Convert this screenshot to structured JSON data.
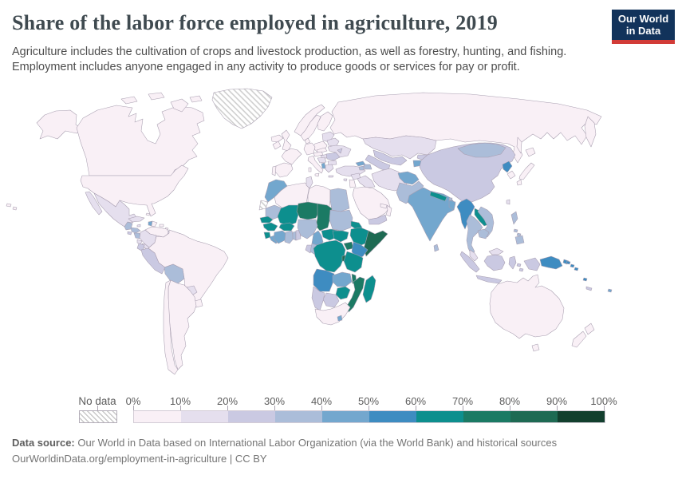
{
  "header": {
    "title": "Share of the labor force employed in agriculture, 2019",
    "subtitle_line1": "Agriculture includes the cultivation of crops and livestock production, as well as forestry, hunting, and fishing.",
    "subtitle_line2": "Employment includes anyone engaged in any activity to produce goods or services for pay or profit.",
    "logo": {
      "line1": "Our World",
      "line2": "in Data",
      "bg_color": "#12335b",
      "accent_color": "#d23b37"
    }
  },
  "legend": {
    "no_data_label": "No data",
    "tick_labels": [
      "0%",
      "10%",
      "20%",
      "30%",
      "40%",
      "50%",
      "60%",
      "70%",
      "80%",
      "90%",
      "100%"
    ]
  },
  "footer": {
    "source_label": "Data source:",
    "source_text": " Our World in Data based on International Labor Organization (via the World Bank) and historical sources",
    "link_line": "OurWorldinData.org/employment-in-agriculture | CC BY"
  },
  "chart_data": {
    "type": "choropleth",
    "title": "Share of the labor force employed in agriculture, 2019",
    "unit": "% of labor force",
    "bin_edges": [
      0,
      10,
      20,
      30,
      40,
      50,
      60,
      70,
      80,
      90,
      100
    ],
    "palette": [
      "#f9f0f6",
      "#e5dfee",
      "#cac9e2",
      "#abbdd9",
      "#73a7ce",
      "#3e8cc1",
      "#0d8f8e",
      "#1b7a64",
      "#1e6a53",
      "#123f2e"
    ],
    "no_data_fill": "hatched",
    "border_color": "#a79daf",
    "country_bins": {
      "United States": 0,
      "Canada": 0,
      "Greenland": "no-data",
      "Mexico": 1,
      "Guatemala": 3,
      "Honduras": 3,
      "Nicaragua": 3,
      "El Salvador": 2,
      "Costa Rica": 1,
      "Panama": 1,
      "Cuba": 1,
      "Jamaica": 1,
      "Haiti": 4,
      "Dominican Republic": 0,
      "Puerto Rico": 0,
      "Bahamas": 0,
      "Trinidad and Tobago": 1,
      "Lesser Antilles": 0,
      "Venezuela": 0,
      "Colombia": 1,
      "Guyana": 1,
      "Suriname": 2,
      "French Guiana": 0,
      "Ecuador": 2,
      "Peru": 2,
      "Bolivia": 3,
      "Brazil": 0,
      "Paraguay": 1,
      "Uruguay": 0,
      "Argentina": 0,
      "Chile": 0,
      "Iceland": 0,
      "Ireland": 0,
      "United Kingdom": 0,
      "Norway": 0,
      "Sweden": 0,
      "Finland": 0,
      "Denmark": 0,
      "Baltic states": 1,
      "Belarus": 1,
      "Poland": 0,
      "Germany": 0,
      "France": 0,
      "Spain": 0,
      "Portugal": 0,
      "Austria": 0,
      "Czechia": 0,
      "Hungary": 1,
      "Italy": 0,
      "Serbia": 1,
      "Romania": 2,
      "Bulgaria": 1,
      "Albania": 4,
      "Greece": 1,
      "Moldova": 2,
      "Ukraine": 1,
      "Turkey": 1,
      "Cyprus": 1,
      "Georgia": 4,
      "Armenia": 3,
      "Azerbaijan": 3,
      "Russia": 0,
      "Kazakhstan": 1,
      "Uzbekistan": 2,
      "Turkmenistan": 2,
      "Kyrgyzstan": 2,
      "Tajikistan": 4,
      "Syria": 1,
      "Iraq": 1,
      "Jordan": 0,
      "Saudi Arabia": 0,
      "Yemen": 2,
      "Oman": 0,
      "United Arab Emirates": 0,
      "Iran": 1,
      "Afghanistan": 4,
      "Pakistan": 3,
      "India": 4,
      "Nepal": 6,
      "Bhutan": 3,
      "Bangladesh": 4,
      "Sri Lanka": 3,
      "China": 2,
      "Mongolia": 3,
      "North Korea": 5,
      "South Korea": 0,
      "Japan": 0,
      "Taiwan": 1,
      "Myanmar": 5,
      "Laos": 6,
      "Vietnam": 3,
      "Thailand": 3,
      "Cambodia": 3,
      "Malaysia": 1,
      "Indonesia": 2,
      "Philippines": 3,
      "Papua New Guinea": 5,
      "Timor-Leste": 5,
      "Solomon Islands": 5,
      "Vanuatu": 5,
      "New Caledonia": 2,
      "Fiji": 4,
      "Australia": 0,
      "New Zealand": 0,
      "Morocco": 4,
      "Western Sahara": "no-data",
      "Algeria": 0,
      "Tunisia": 1,
      "Libya": 0,
      "Egypt": 3,
      "Mauritania": 3,
      "Senegal": 6,
      "Guinea": 6,
      "Sierra Leone": 6,
      "Liberia": 4,
      "Mali": 6,
      "Burkina Faso": 6,
      "Ivory Coast": 4,
      "Ghana": 3,
      "Togo": 3,
      "Benin": 2,
      "Niger": 7,
      "Nigeria": 3,
      "Chad": 7,
      "Sudan": 3,
      "Eritrea": 6,
      "Ethiopia": 6,
      "Somalia": 8,
      "South Sudan": 6,
      "Central African Republic": 6,
      "Cameroon": 4,
      "Gabon": 2,
      "Congo": 3,
      "Democratic Republic of Congo": 6,
      "Uganda": 7,
      "Kenya": 5,
      "Rwanda": 8,
      "Tanzania": 6,
      "Angola": 5,
      "Zambia": 4,
      "Malawi": 7,
      "Mozambique": 7,
      "Zimbabwe": 6,
      "Botswana": 2,
      "Namibia": 2,
      "South Africa": 0,
      "Lesotho": 4,
      "Madagascar": 6
    }
  }
}
